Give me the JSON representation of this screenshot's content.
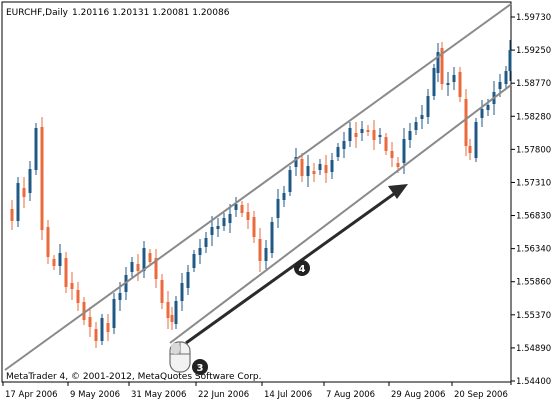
{
  "header": {
    "symbol_timeframe": "EURCHF,Daily",
    "ohlc": "1.20116 1.20131 1.20081 1.20086"
  },
  "footer": {
    "copyright": "MetaTrader 4, © 2001-2012, MetaQuotes Software Corp."
  },
  "annotations": {
    "mouse_step": "3",
    "arrow_step": "4"
  },
  "colors": {
    "bull": "#1f5a86",
    "bear": "#ea6a3c",
    "channel": "#8a8a8a",
    "arrow": "#2b2b2b"
  },
  "icons": [
    "mouse-icon"
  ],
  "chart_data": {
    "type": "candlestick",
    "title": "",
    "y_ticks": [
      "1.59730",
      "1.59250",
      "1.58770",
      "1.58280",
      "1.57800",
      "1.57310",
      "1.56830",
      "1.56340",
      "1.55860",
      "1.55370",
      "1.54890",
      "1.54400"
    ],
    "x_ticks": [
      "17 Apr 2006",
      "9 May 2006",
      "31 May 2006",
      "22 Jun 2006",
      "14 Jul 2006",
      "7 Aug 2006",
      "29 Aug 2006",
      "20 Sep 2006"
    ],
    "ylim": [
      1.5435,
      1.5982
    ],
    "grid": false,
    "channel_lines": 2
  }
}
